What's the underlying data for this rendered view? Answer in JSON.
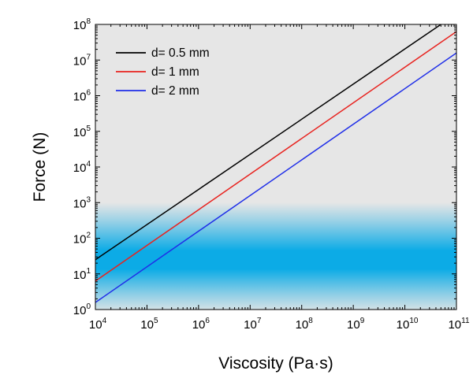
{
  "chart_data": {
    "type": "line",
    "title": "",
    "xlabel": "Viscosity (Pa·s)",
    "ylabel": "Force (N)",
    "x_scale": "log",
    "y_scale": "log",
    "xlim": [
      10000,
      100000000000
    ],
    "ylim": [
      1,
      100000000
    ],
    "x_ticks": [
      {
        "base": "10",
        "exp": "4"
      },
      {
        "base": "10",
        "exp": "5"
      },
      {
        "base": "10",
        "exp": "6"
      },
      {
        "base": "10",
        "exp": "7"
      },
      {
        "base": "10",
        "exp": "8"
      },
      {
        "base": "10",
        "exp": "9"
      },
      {
        "base": "10",
        "exp": "10"
      },
      {
        "base": "10",
        "exp": "11"
      }
    ],
    "y_ticks": [
      {
        "base": "10",
        "exp": "0"
      },
      {
        "base": "10",
        "exp": "1"
      },
      {
        "base": "10",
        "exp": "2"
      },
      {
        "base": "10",
        "exp": "3"
      },
      {
        "base": "10",
        "exp": "4"
      },
      {
        "base": "10",
        "exp": "5"
      },
      {
        "base": "10",
        "exp": "6"
      },
      {
        "base": "10",
        "exp": "7"
      },
      {
        "base": "10",
        "exp": "8"
      }
    ],
    "grid": false,
    "legend_position": "top-left",
    "background_color": "#e6e6e6",
    "highlight_band": {
      "y_from": 1,
      "y_to": 1000,
      "color": "#00a8e6"
    },
    "series": [
      {
        "name": "d= 0.5 mm",
        "color": "#000000",
        "x": [
          10000,
          50000000000
        ],
        "y": [
          25,
          100000000
        ]
      },
      {
        "name": "d= 1 mm",
        "color": "#e8231f",
        "x": [
          10000,
          100000000000
        ],
        "y": [
          6.3,
          63000000
        ]
      },
      {
        "name": "d= 2 mm",
        "color": "#1f2ee8",
        "x": [
          10000,
          100000000000
        ],
        "y": [
          1.58,
          15800000
        ]
      }
    ]
  }
}
